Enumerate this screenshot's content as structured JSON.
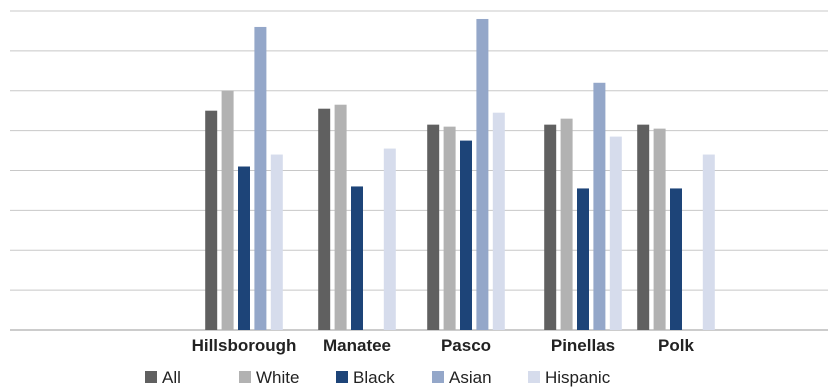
{
  "chart_data": {
    "type": "bar",
    "title": "",
    "xlabel": "",
    "ylabel": "",
    "ylim": [
      0,
      8
    ],
    "grid": true,
    "legend_position": "bottom",
    "categories": [
      "Hillsborough",
      "Manatee",
      "Pasco",
      "Pinellas",
      "Polk"
    ],
    "series": [
      {
        "name": "All",
        "color": "#606060",
        "values": [
          5.5,
          5.55,
          5.15,
          5.15,
          5.15
        ]
      },
      {
        "name": "White",
        "color": "#b2b2b2",
        "values": [
          6.0,
          5.65,
          5.1,
          5.3,
          5.05
        ]
      },
      {
        "name": "Black",
        "color": "#1d4478",
        "values": [
          4.1,
          3.6,
          4.75,
          3.55,
          3.55
        ]
      },
      {
        "name": "Asian",
        "color": "#94a7c9",
        "values": [
          7.6,
          null,
          7.8,
          6.2,
          null
        ]
      },
      {
        "name": "Hispanic",
        "color": "#d6dcec",
        "values": [
          4.4,
          4.55,
          5.45,
          4.85,
          4.4
        ]
      }
    ]
  }
}
